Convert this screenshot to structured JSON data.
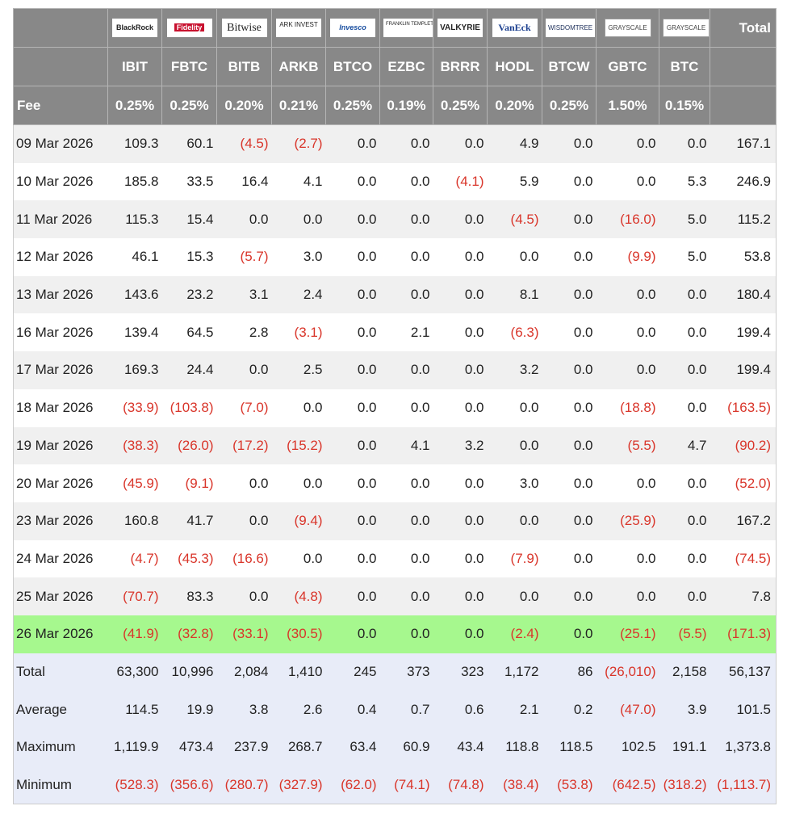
{
  "header": {
    "logos": [
      "BlackRock",
      "Fidelity",
      "Bitwise",
      "ARK INVEST",
      "Invesco",
      "FRANKLIN TEMPLETON",
      "VALKYRIE",
      "VanEck",
      "WISDOMTREE",
      "GRAYSCALE",
      "GRAYSCALE"
    ],
    "total_label": "Total",
    "tickers": [
      "IBIT",
      "FBTC",
      "BITB",
      "ARKB",
      "BTCO",
      "EZBC",
      "BRRR",
      "HODL",
      "BTCW",
      "GBTC",
      "BTC"
    ],
    "fee_label": "Fee",
    "fees": [
      "0.25%",
      "0.25%",
      "0.20%",
      "0.21%",
      "0.25%",
      "0.19%",
      "0.25%",
      "0.20%",
      "0.25%",
      "1.50%",
      "0.15%"
    ]
  },
  "rows": [
    {
      "date": "09 Mar 2026",
      "values": [
        "109.3",
        "60.1",
        "(4.5)",
        "(2.7)",
        "0.0",
        "0.0",
        "0.0",
        "4.9",
        "0.0",
        "0.0",
        "0.0"
      ],
      "total": "167.1"
    },
    {
      "date": "10 Mar 2026",
      "values": [
        "185.8",
        "33.5",
        "16.4",
        "4.1",
        "0.0",
        "0.0",
        "(4.1)",
        "5.9",
        "0.0",
        "0.0",
        "5.3"
      ],
      "total": "246.9"
    },
    {
      "date": "11 Mar 2026",
      "values": [
        "115.3",
        "15.4",
        "0.0",
        "0.0",
        "0.0",
        "0.0",
        "0.0",
        "(4.5)",
        "0.0",
        "(16.0)",
        "5.0"
      ],
      "total": "115.2"
    },
    {
      "date": "12 Mar 2026",
      "values": [
        "46.1",
        "15.3",
        "(5.7)",
        "3.0",
        "0.0",
        "0.0",
        "0.0",
        "0.0",
        "0.0",
        "(9.9)",
        "5.0"
      ],
      "total": "53.8"
    },
    {
      "date": "13 Mar 2026",
      "values": [
        "143.6",
        "23.2",
        "3.1",
        "2.4",
        "0.0",
        "0.0",
        "0.0",
        "8.1",
        "0.0",
        "0.0",
        "0.0"
      ],
      "total": "180.4"
    },
    {
      "date": "16 Mar 2026",
      "values": [
        "139.4",
        "64.5",
        "2.8",
        "(3.1)",
        "0.0",
        "2.1",
        "0.0",
        "(6.3)",
        "0.0",
        "0.0",
        "0.0"
      ],
      "total": "199.4"
    },
    {
      "date": "17 Mar 2026",
      "values": [
        "169.3",
        "24.4",
        "0.0",
        "2.5",
        "0.0",
        "0.0",
        "0.0",
        "3.2",
        "0.0",
        "0.0",
        "0.0"
      ],
      "total": "199.4"
    },
    {
      "date": "18 Mar 2026",
      "values": [
        "(33.9)",
        "(103.8)",
        "(7.0)",
        "0.0",
        "0.0",
        "0.0",
        "0.0",
        "0.0",
        "0.0",
        "(18.8)",
        "0.0"
      ],
      "total": "(163.5)"
    },
    {
      "date": "19 Mar 2026",
      "values": [
        "(38.3)",
        "(26.0)",
        "(17.2)",
        "(15.2)",
        "0.0",
        "4.1",
        "3.2",
        "0.0",
        "0.0",
        "(5.5)",
        "4.7"
      ],
      "total": "(90.2)"
    },
    {
      "date": "20 Mar 2026",
      "values": [
        "(45.9)",
        "(9.1)",
        "0.0",
        "0.0",
        "0.0",
        "0.0",
        "0.0",
        "3.0",
        "0.0",
        "0.0",
        "0.0"
      ],
      "total": "(52.0)"
    },
    {
      "date": "23 Mar 2026",
      "values": [
        "160.8",
        "41.7",
        "0.0",
        "(9.4)",
        "0.0",
        "0.0",
        "0.0",
        "0.0",
        "0.0",
        "(25.9)",
        "0.0"
      ],
      "total": "167.2"
    },
    {
      "date": "24 Mar 2026",
      "values": [
        "(4.7)",
        "(45.3)",
        "(16.6)",
        "0.0",
        "0.0",
        "0.0",
        "0.0",
        "(7.9)",
        "0.0",
        "0.0",
        "0.0"
      ],
      "total": "(74.5)"
    },
    {
      "date": "25 Mar 2026",
      "values": [
        "(70.7)",
        "83.3",
        "0.0",
        "(4.8)",
        "0.0",
        "0.0",
        "0.0",
        "0.0",
        "0.0",
        "0.0",
        "0.0"
      ],
      "total": "7.8"
    },
    {
      "date": "26 Mar 2026",
      "values": [
        "(41.9)",
        "(32.8)",
        "(33.1)",
        "(30.5)",
        "0.0",
        "0.0",
        "0.0",
        "(2.4)",
        "0.0",
        "(25.1)",
        "(5.5)"
      ],
      "total": "(171.3)"
    }
  ],
  "summary": [
    {
      "label": "Total",
      "values": [
        "63,300",
        "10,996",
        "2,084",
        "1,410",
        "245",
        "373",
        "323",
        "1,172",
        "86",
        "(26,010)",
        "2,158"
      ],
      "total": "56,137"
    },
    {
      "label": "Average",
      "values": [
        "114.5",
        "19.9",
        "3.8",
        "2.6",
        "0.4",
        "0.7",
        "0.6",
        "2.1",
        "0.2",
        "(47.0)",
        "3.9"
      ],
      "total": "101.5"
    },
    {
      "label": "Maximum",
      "values": [
        "1,119.9",
        "473.4",
        "237.9",
        "268.7",
        "63.4",
        "60.9",
        "43.4",
        "118.8",
        "118.5",
        "102.5",
        "191.1"
      ],
      "total": "1,373.8"
    },
    {
      "label": "Minimum",
      "values": [
        "(528.3)",
        "(356.6)",
        "(280.7)",
        "(327.9)",
        "(62.0)",
        "(74.1)",
        "(74.8)",
        "(38.4)",
        "(53.8)",
        "(642.5)",
        "(318.2)"
      ],
      "total": "(1,113.7)"
    }
  ]
}
